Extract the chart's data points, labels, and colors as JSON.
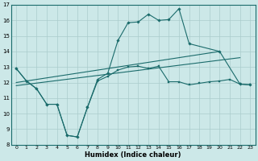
{
  "xlabel": "Humidex (Indice chaleur)",
  "xlim": [
    -0.5,
    23.5
  ],
  "ylim": [
    8,
    17
  ],
  "yticks": [
    8,
    9,
    10,
    11,
    12,
    13,
    14,
    15,
    16,
    17
  ],
  "xticks": [
    0,
    1,
    2,
    3,
    4,
    5,
    6,
    7,
    8,
    9,
    10,
    11,
    12,
    13,
    14,
    15,
    16,
    17,
    18,
    19,
    20,
    21,
    22,
    23
  ],
  "bg_color": "#cce8e8",
  "grid_color": "#aacccc",
  "line_color": "#1a6b6b",
  "line_peak_x": [
    0,
    1,
    2,
    3,
    4,
    5,
    6,
    7,
    8,
    9,
    10,
    11,
    12,
    13,
    14,
    15,
    16,
    17,
    20,
    22,
    23
  ],
  "line_peak_y": [
    12.9,
    12.1,
    11.6,
    10.6,
    10.6,
    8.6,
    8.5,
    10.4,
    12.2,
    12.6,
    14.7,
    15.85,
    15.9,
    16.4,
    16.0,
    16.05,
    16.75,
    14.5,
    14.0,
    11.9,
    11.85
  ],
  "line_base_x": [
    0,
    1,
    2,
    3,
    4,
    5,
    6,
    7,
    8,
    9,
    10,
    11,
    12,
    13,
    14,
    15,
    16,
    17,
    18,
    19,
    20,
    21,
    22,
    23
  ],
  "line_base_y": [
    12.9,
    12.1,
    11.6,
    10.6,
    10.6,
    8.6,
    8.5,
    10.4,
    12.1,
    12.4,
    12.8,
    13.0,
    13.05,
    12.9,
    13.05,
    12.05,
    12.05,
    11.85,
    11.95,
    12.05,
    12.1,
    12.2,
    11.9,
    11.85
  ],
  "line_trend1_x": [
    0,
    20
  ],
  "line_trend1_y": [
    12.0,
    14.0
  ],
  "line_trend2_x": [
    0,
    22
  ],
  "line_trend2_y": [
    11.8,
    13.6
  ]
}
